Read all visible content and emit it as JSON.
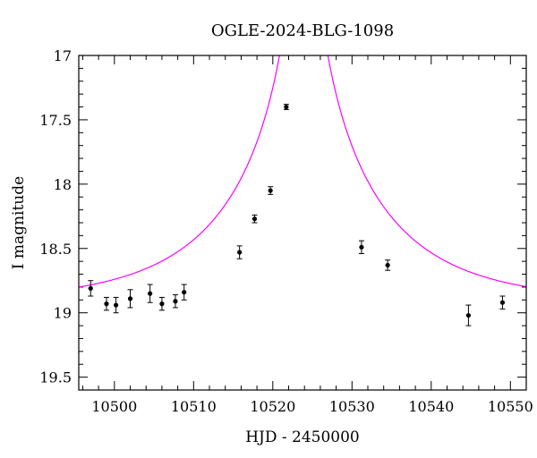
{
  "chart_data": {
    "type": "scatter",
    "title": "OGLE-2024-BLG-1098",
    "xlabel": "HJD - 2450000",
    "ylabel": "I magnitude",
    "xlim": [
      10495.5,
      10552
    ],
    "ylim": [
      19.6,
      17
    ],
    "y_inverted": true,
    "xticks": [
      10500,
      10510,
      10520,
      10530,
      10540,
      10550
    ],
    "xtick_labels": [
      "10500",
      "10510",
      "10520",
      "10530",
      "10540",
      "10550"
    ],
    "yticks": [
      17,
      17.5,
      18,
      18.5,
      19,
      19.5
    ],
    "ytick_labels": [
      "17",
      "17.5",
      "18",
      "18.5",
      "19",
      "19.5"
    ],
    "grid": false,
    "legend": "none",
    "series": [
      {
        "kind": "points_with_errorbars",
        "color": "#000000",
        "points": [
          {
            "x": 10497.0,
            "y": 18.81,
            "err": 0.06
          },
          {
            "x": 10499.0,
            "y": 18.93,
            "err": 0.05
          },
          {
            "x": 10500.2,
            "y": 18.94,
            "err": 0.06
          },
          {
            "x": 10502.0,
            "y": 18.89,
            "err": 0.07
          },
          {
            "x": 10504.5,
            "y": 18.85,
            "err": 0.07
          },
          {
            "x": 10506.0,
            "y": 18.93,
            "err": 0.05
          },
          {
            "x": 10507.7,
            "y": 18.91,
            "err": 0.05
          },
          {
            "x": 10508.8,
            "y": 18.84,
            "err": 0.06
          },
          {
            "x": 10515.8,
            "y": 18.53,
            "err": 0.05
          },
          {
            "x": 10517.7,
            "y": 18.27,
            "err": 0.03
          },
          {
            "x": 10519.7,
            "y": 18.05,
            "err": 0.03
          },
          {
            "x": 10521.7,
            "y": 17.4,
            "err": 0.02
          },
          {
            "x": 10531.2,
            "y": 18.49,
            "err": 0.05
          },
          {
            "x": 10534.5,
            "y": 18.63,
            "err": 0.04
          },
          {
            "x": 10544.7,
            "y": 19.02,
            "err": 0.08
          },
          {
            "x": 10549.0,
            "y": 18.92,
            "err": 0.05
          }
        ]
      },
      {
        "kind": "model_curve",
        "color": "#ff00ff",
        "model": {
          "t0": 10523.9,
          "baseline_mag": 18.92,
          "tE": 18.0,
          "u0": 0.03
        }
      }
    ]
  }
}
